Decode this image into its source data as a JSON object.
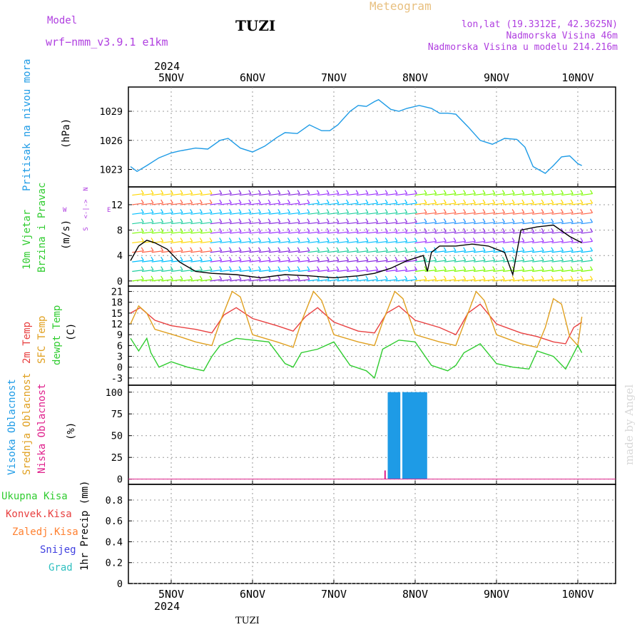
{
  "header": {
    "model_label": "Model",
    "model_name": "wrf−nmm_v3.9.1 e1km",
    "station": "TUZI",
    "title": "Meteogram",
    "coords": "lon,lat (19.3312E, 42.3625N)",
    "elevation": "Nadmorska Visina 46m",
    "model_elevation": "Nadmorska Visina u modelu 214.216m",
    "credit": "made by Angel",
    "footer_station": "TUZI"
  },
  "time_axis": {
    "labels": [
      "5NOV",
      "6NOV",
      "7NOV",
      "8NOV",
      "9NOV",
      "10NOV"
    ],
    "year": "2024"
  },
  "colors": {
    "pressure": "#1e9be6",
    "temp2m": "#e84040",
    "sfc_temp": "#e0a020",
    "dewpoint": "#30cc30",
    "high_cloud": "#1e9be6",
    "mid_cloud": "#e0a020",
    "low_cloud": "#e0208c",
    "wind_label": "#30cc30",
    "wind_dir_label": "#b040e0",
    "total_precip": "#30cc30",
    "conv_precip": "#e84040",
    "freezing": "#ff8030",
    "snow": "#4040e0",
    "hail": "#30c0c0"
  },
  "labels": {
    "pressure": [
      "Pritisak na nivou mora",
      "(hPa)"
    ],
    "wind": [
      "10m Vjetar",
      "Brzina i Pravac",
      "(m/s)"
    ],
    "wind_dir": [
      "N",
      "W",
      "E",
      "S"
    ],
    "temp": [
      "2m Temp",
      "SFC Temp",
      "dewpt Temp",
      "(C)"
    ],
    "cloud": [
      "Visoka Oblacnost",
      "Srednja Oblacnost",
      "Niska Oblacnost",
      "(%)"
    ],
    "precip": [
      "Ukupna Kisa",
      "Konvek.Kisa",
      "Zaledj.Kisa",
      "Snijeg",
      "Grad",
      "1hr Precip (mm)"
    ]
  },
  "chart_data": [
    {
      "type": "line",
      "panel": "pressure",
      "ylabel": "(hPa)",
      "yticks": [
        1023,
        1026,
        1029
      ],
      "ylim": [
        1021.2,
        1031.5
      ],
      "grid": true,
      "series": [
        {
          "name": "Pritisak na nivou mora",
          "x_days": [
            0,
            0.08,
            0.2,
            0.35,
            0.5,
            0.6,
            0.8,
            0.95,
            1.1,
            1.2,
            1.35,
            1.5,
            1.65,
            1.8,
            1.9,
            2.05,
            2.2,
            2.35,
            2.45,
            2.55,
            2.7,
            2.8,
            2.9,
            3.0,
            3.05,
            3.2,
            3.3,
            3.4,
            3.55,
            3.7,
            3.8,
            3.9,
            4.0,
            4.15,
            4.3,
            4.45,
            4.6,
            4.75,
            4.85,
            4.95,
            5.1,
            5.2,
            5.3,
            5.4,
            5.5,
            5.55
          ],
          "values": [
            1023.3,
            1022.8,
            1023.4,
            1024.2,
            1024.7,
            1024.9,
            1025.2,
            1025.1,
            1026.0,
            1026.2,
            1025.2,
            1024.8,
            1025.4,
            1026.3,
            1026.8,
            1026.7,
            1027.6,
            1027.0,
            1027.0,
            1027.6,
            1029.0,
            1029.6,
            1029.5,
            1030.0,
            1030.2,
            1029.2,
            1029.0,
            1029.3,
            1029.6,
            1029.3,
            1028.8,
            1028.8,
            1028.7,
            1027.4,
            1026.0,
            1025.6,
            1026.2,
            1026.1,
            1025.3,
            1023.3,
            1022.6,
            1023.4,
            1024.3,
            1024.4,
            1023.6,
            1023.4
          ]
        }
      ]
    },
    {
      "type": "line",
      "panel": "wind",
      "ylabel": "(m/s)",
      "yticks": [
        0,
        4,
        8,
        12
      ],
      "ylim": [
        -0.8,
        14.8
      ],
      "grid": true,
      "series": [
        {
          "name": "Brzina",
          "x_days": [
            0,
            0.1,
            0.2,
            0.3,
            0.45,
            0.6,
            0.8,
            1.0,
            1.3,
            1.6,
            1.9,
            2.2,
            2.5,
            2.8,
            3.0,
            3.2,
            3.4,
            3.6,
            3.65,
            3.7,
            3.8,
            4.0,
            4.2,
            4.4,
            4.6,
            4.7,
            4.8,
            5.0,
            5.2,
            5.4,
            5.55
          ],
          "values": [
            3.2,
            5.5,
            6.4,
            6.0,
            5.0,
            3.0,
            1.5,
            1.2,
            1.0,
            0.5,
            1.0,
            0.8,
            0.5,
            0.8,
            1.2,
            2.0,
            3.2,
            4.0,
            1.5,
            4.5,
            5.5,
            5.5,
            5.8,
            5.5,
            4.5,
            1.0,
            8.0,
            8.5,
            8.8,
            7.0,
            6.0
          ]
        }
      ]
    },
    {
      "type": "line",
      "panel": "temperature",
      "ylabel": "(C)",
      "yticks": [
        -3,
        0,
        3,
        6,
        9,
        12,
        15,
        18,
        21
      ],
      "ylim": [
        -5,
        22.5
      ],
      "grid": true,
      "series": [
        {
          "name": "2m Temp",
          "x_days": [
            0,
            0.12,
            0.3,
            0.5,
            0.8,
            1.0,
            1.15,
            1.3,
            1.5,
            1.8,
            2.0,
            2.15,
            2.3,
            2.5,
            2.8,
            3.0,
            3.15,
            3.3,
            3.5,
            3.8,
            4.0,
            4.15,
            4.3,
            4.5,
            4.8,
            5.0,
            5.2,
            5.35,
            5.45,
            5.55
          ],
          "values": [
            15.0,
            16.5,
            13.0,
            11.5,
            10.5,
            9.5,
            14.5,
            16.5,
            13.5,
            11.5,
            10.0,
            14.0,
            16.5,
            12.5,
            10.0,
            9.5,
            15.0,
            17.0,
            13.0,
            11.0,
            9.0,
            15.0,
            17.5,
            12.0,
            9.5,
            8.5,
            7.0,
            6.5,
            11.0,
            12.5
          ]
        },
        {
          "name": "SFC Temp",
          "x_days": [
            0,
            0.1,
            0.2,
            0.3,
            0.6,
            0.8,
            1.0,
            1.1,
            1.25,
            1.35,
            1.5,
            1.8,
            2.0,
            2.1,
            2.25,
            2.35,
            2.5,
            2.8,
            3.0,
            3.1,
            3.25,
            3.35,
            3.5,
            3.8,
            4.0,
            4.1,
            4.25,
            4.35,
            4.5,
            4.8,
            5.0,
            5.1,
            5.2,
            5.3,
            5.4,
            5.5,
            5.55
          ],
          "values": [
            12.0,
            17.0,
            15.0,
            10.5,
            8.5,
            7.0,
            6.0,
            12.5,
            21.0,
            19.5,
            9.0,
            7.0,
            5.5,
            12.5,
            21.0,
            18.5,
            9.0,
            7.0,
            6.0,
            12.5,
            21.0,
            19.0,
            9.0,
            7.0,
            6.0,
            12.0,
            21.0,
            18.5,
            9.0,
            6.5,
            5.5,
            11.0,
            19.0,
            17.5,
            8.5,
            6.0,
            14.0
          ]
        },
        {
          "name": "dewpt Temp",
          "x_days": [
            0,
            0.1,
            0.2,
            0.25,
            0.35,
            0.5,
            0.7,
            0.9,
            1.0,
            1.1,
            1.3,
            1.5,
            1.7,
            1.9,
            2.0,
            2.1,
            2.3,
            2.5,
            2.7,
            2.9,
            3.0,
            3.1,
            3.3,
            3.5,
            3.7,
            3.9,
            4.0,
            4.1,
            4.3,
            4.5,
            4.7,
            4.9,
            5.0,
            5.2,
            5.35,
            5.5,
            5.55
          ],
          "values": [
            8.0,
            4.5,
            8.0,
            4.0,
            0.0,
            1.5,
            0.0,
            -1.0,
            3.0,
            6.0,
            8.0,
            7.5,
            7.0,
            1.0,
            0.0,
            4.0,
            5.0,
            7.0,
            0.5,
            -1.0,
            -3.0,
            5.0,
            7.5,
            7.0,
            0.5,
            -1.0,
            0.5,
            4.0,
            6.5,
            1.0,
            0.0,
            -0.5,
            4.5,
            3.0,
            -0.5,
            6.0,
            4.0
          ]
        }
      ]
    },
    {
      "type": "bar",
      "panel": "cloud",
      "ylabel": "(%)",
      "yticks": [
        0,
        25,
        50,
        75,
        100
      ],
      "ylim": [
        -6,
        108
      ],
      "grid": true,
      "series": [
        {
          "name": "Visoka Oblacnost",
          "x_days": [
            3.18,
            3.21,
            3.24,
            3.27,
            3.3,
            3.36,
            3.39,
            3.42,
            3.45,
            3.48,
            3.51,
            3.54,
            3.57,
            3.6,
            3.63
          ],
          "values": [
            100,
            100,
            100,
            100,
            100,
            100,
            100,
            100,
            100,
            100,
            100,
            100,
            100,
            100,
            100
          ]
        },
        {
          "name": "Niska Oblacnost",
          "x_days": [
            3.13
          ],
          "values": [
            10
          ]
        }
      ]
    },
    {
      "type": "bar",
      "panel": "precipitation",
      "ylabel": "1hr Precip (mm)",
      "yticks": [
        0,
        0.2,
        0.4,
        0.6,
        0.8
      ],
      "ylim": [
        0,
        0.95
      ],
      "grid": true,
      "series": []
    }
  ]
}
